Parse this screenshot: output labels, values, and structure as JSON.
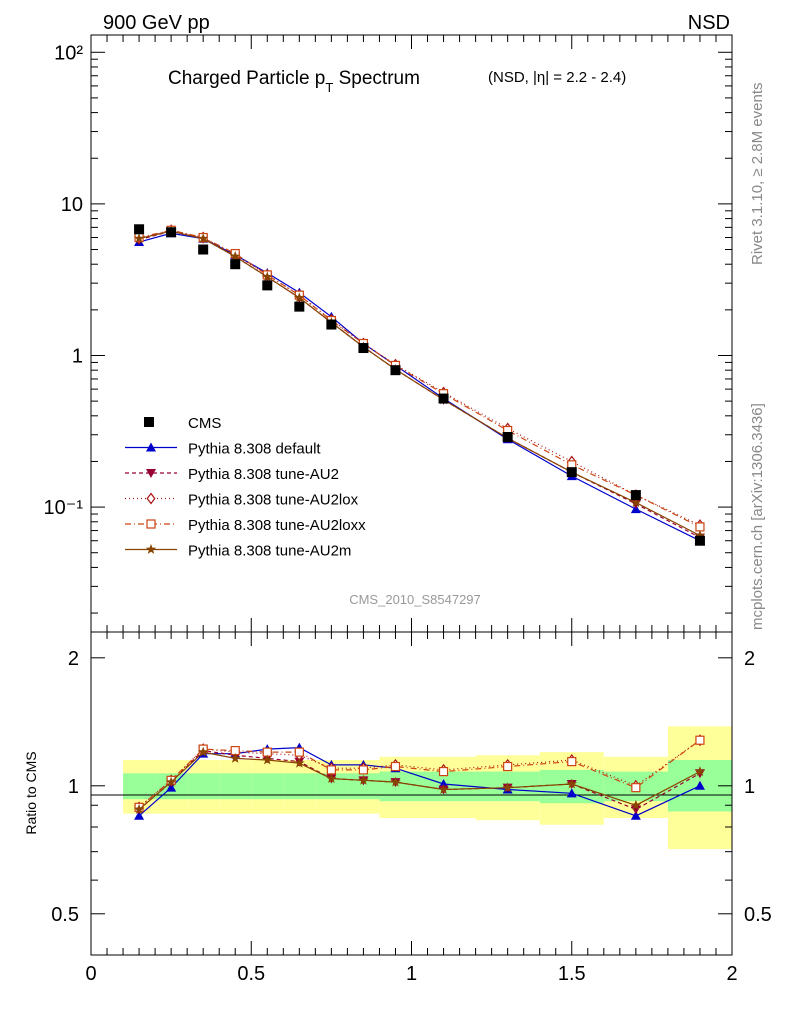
{
  "header": {
    "left_label": "900 GeV pp",
    "right_label": "NSD"
  },
  "side_labels": {
    "rivet": "Rivet 3.1.10, ≥ 2.8M events",
    "mcplots": "mcplots.cern.ch [arXiv:1306.3436]"
  },
  "chart_data": {
    "type": "line",
    "title_main": "Charged Particle p",
    "title_sub": "T",
    "title_main_end": " Spectrum",
    "title_small": "(NSD, |η| = 2.2 - 2.4)",
    "analysis_id": "CMS_2010_S8547297",
    "x": [
      0.15,
      0.25,
      0.35,
      0.45,
      0.55,
      0.65,
      0.75,
      0.85,
      0.95,
      1.1,
      1.3,
      1.5,
      1.7,
      1.9
    ],
    "x_edges": [
      0.1,
      0.2,
      0.3,
      0.4,
      0.5,
      0.6,
      0.7,
      0.8,
      0.9,
      1.0,
      1.2,
      1.4,
      1.6,
      1.8,
      2.0
    ],
    "xlim": [
      0,
      2
    ],
    "x_ticks": [
      "0",
      "0.5",
      "1",
      "1.5",
      "2"
    ],
    "upper": {
      "yscale": "log",
      "ylim": [
        0.015,
        130
      ],
      "y_ticks": [
        "10⁻¹",
        "1",
        "10",
        "10²"
      ],
      "data": {
        "name": "CMS",
        "values": [
          6.8,
          6.5,
          5.0,
          4.0,
          2.9,
          2.1,
          1.6,
          1.12,
          0.8,
          0.52,
          0.29,
          0.17,
          0.12,
          0.06
        ]
      },
      "series": [
        {
          "name": "Pythia 8.308 default",
          "color": "#0000cc",
          "dash": "",
          "marker": "triangle-up",
          "values": [
            5.6,
            6.4,
            5.9,
            4.6,
            3.5,
            2.6,
            1.8,
            1.2,
            0.86,
            0.52,
            0.28,
            0.16,
            0.097,
            0.06
          ]
        },
        {
          "name": "Pythia 8.308 tune-AU2",
          "color": "#990033",
          "dash": "4,3",
          "marker": "triangle-down",
          "values": [
            5.8,
            6.6,
            5.9,
            4.5,
            3.3,
            2.4,
            1.65,
            1.14,
            0.81,
            0.51,
            0.285,
            0.17,
            0.105,
            0.063
          ]
        },
        {
          "name": "Pythia 8.308 tune-AU2lox",
          "color": "#aa1111",
          "dash": "1,3",
          "marker": "diamond-open",
          "values": [
            5.9,
            6.7,
            6.0,
            4.6,
            3.4,
            2.5,
            1.72,
            1.2,
            0.87,
            0.57,
            0.33,
            0.2,
            0.12,
            0.076
          ]
        },
        {
          "name": "Pythia 8.308 tune-AU2loxx",
          "color": "#cc4411",
          "dash": "6,3,1,3",
          "marker": "square-open",
          "values": [
            6.0,
            6.7,
            6.0,
            4.7,
            3.4,
            2.5,
            1.7,
            1.2,
            0.86,
            0.56,
            0.32,
            0.19,
            0.12,
            0.074
          ]
        },
        {
          "name": "Pythia 8.308 tune-AU2m",
          "color": "#884400",
          "dash": "",
          "marker": "star",
          "values": [
            5.9,
            6.6,
            5.9,
            4.5,
            3.3,
            2.4,
            1.65,
            1.14,
            0.81,
            0.51,
            0.285,
            0.17,
            0.107,
            0.065
          ]
        }
      ]
    },
    "lower": {
      "ylabel": "Ratio to CMS",
      "yscale": "log",
      "ylim": [
        0.4,
        2.3
      ],
      "y_ticks": [
        "0.5",
        "1",
        "2"
      ],
      "band_green": [
        [
          0.93,
          1.07
        ],
        [
          0.93,
          1.07
        ],
        [
          0.93,
          1.07
        ],
        [
          0.93,
          1.07
        ],
        [
          0.93,
          1.07
        ],
        [
          0.93,
          1.07
        ],
        [
          0.93,
          1.07
        ],
        [
          0.93,
          1.07
        ],
        [
          0.92,
          1.08
        ],
        [
          0.92,
          1.08
        ],
        [
          0.92,
          1.08
        ],
        [
          0.91,
          1.09
        ],
        [
          0.92,
          1.08
        ],
        [
          0.87,
          1.15
        ]
      ],
      "band_yellow": [
        [
          0.86,
          1.15
        ],
        [
          0.86,
          1.15
        ],
        [
          0.86,
          1.15
        ],
        [
          0.86,
          1.15
        ],
        [
          0.86,
          1.15
        ],
        [
          0.86,
          1.15
        ],
        [
          0.86,
          1.15
        ],
        [
          0.86,
          1.15
        ],
        [
          0.84,
          1.17
        ],
        [
          0.84,
          1.17
        ],
        [
          0.83,
          1.18
        ],
        [
          0.81,
          1.2
        ],
        [
          0.84,
          1.17
        ],
        [
          0.71,
          1.38
        ]
      ],
      "series": [
        {
          "name": "Pythia 8.308 default",
          "values": [
            0.85,
            0.99,
            1.19,
            1.19,
            1.22,
            1.23,
            1.12,
            1.12,
            1.1,
            1.01,
            0.98,
            0.96,
            0.85,
            1.0
          ]
        },
        {
          "name": "Pythia 8.308 tune-AU2",
          "values": [
            0.88,
            1.02,
            1.21,
            1.18,
            1.16,
            1.14,
            1.04,
            1.03,
            1.02,
            0.98,
            0.99,
            1.01,
            0.88,
            1.07
          ]
        },
        {
          "name": "Pythia 8.308 tune-AU2lox",
          "values": [
            0.89,
            1.03,
            1.22,
            1.2,
            1.19,
            1.18,
            1.1,
            1.1,
            1.12,
            1.09,
            1.12,
            1.15,
            1.0,
            1.28
          ]
        },
        {
          "name": "Pythia 8.308 tune-AU2loxx",
          "values": [
            0.89,
            1.03,
            1.22,
            1.21,
            1.2,
            1.2,
            1.09,
            1.09,
            1.11,
            1.08,
            1.11,
            1.14,
            0.99,
            1.28
          ]
        },
        {
          "name": "Pythia 8.308 tune-AU2m",
          "values": [
            0.88,
            1.02,
            1.2,
            1.16,
            1.15,
            1.13,
            1.04,
            1.03,
            1.02,
            0.98,
            0.99,
            1.01,
            0.9,
            1.08
          ]
        }
      ]
    },
    "legend_position": "lower-left"
  }
}
